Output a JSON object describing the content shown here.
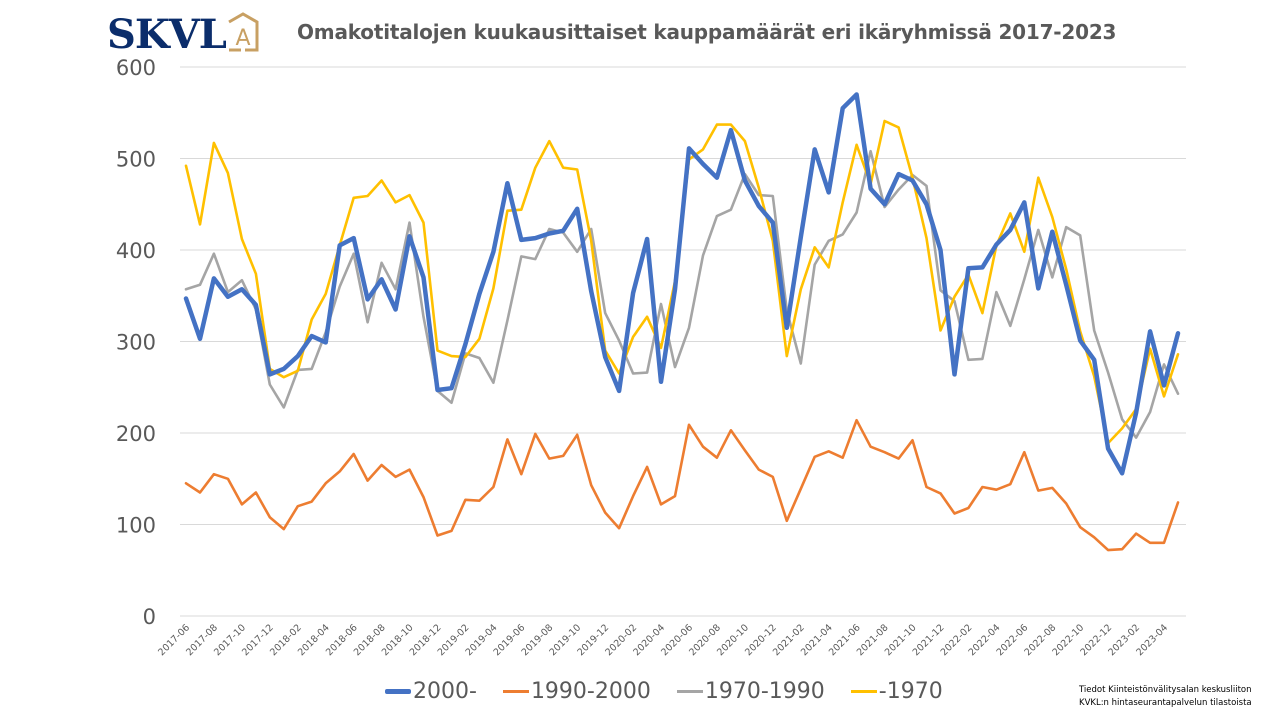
{
  "logo": {
    "text": "SKVL",
    "badge": "A",
    "text_color": "#0b2d6b",
    "badge_color": "#c8a063"
  },
  "header": {
    "title": "Omakotitalojen kuukausittaiset kauppamäärät eri ikäryhmissä 2017-2023"
  },
  "source": {
    "line1": "Tiedot Kiinteistönvälitysalan keskusliiton",
    "line2": "KVKL:n hintaseurantapalvelun tilastoista"
  },
  "chart_data": {
    "type": "line",
    "title": "Omakotitalojen kuukausittaiset kauppamäärät eri ikäryhmissä 2017-2023",
    "xlabel": "",
    "ylabel": "",
    "ylim": [
      0,
      600
    ],
    "yticks": [
      "0",
      "100",
      "200",
      "300",
      "400",
      "500",
      "600"
    ],
    "grid": true,
    "legend": "bottom",
    "x": [
      "2017-06",
      "2017-07",
      "2017-08",
      "2017-09",
      "2017-10",
      "2017-11",
      "2017-12",
      "2018-01",
      "2018-02",
      "2018-03",
      "2018-04",
      "2018-05",
      "2018-06",
      "2018-07",
      "2018-08",
      "2018-09",
      "2018-10",
      "2018-11",
      "2018-12",
      "2019-01",
      "2019-02",
      "2019-03",
      "2019-04",
      "2019-05",
      "2019-06",
      "2019-07",
      "2019-08",
      "2019-09",
      "2019-10",
      "2019-11",
      "2019-12",
      "2020-01",
      "2020-02",
      "2020-03",
      "2020-04",
      "2020-05",
      "2020-06",
      "2020-07",
      "2020-08",
      "2020-09",
      "2020-10",
      "2020-11",
      "2020-12",
      "2021-01",
      "2021-02",
      "2021-03",
      "2021-04",
      "2021-05",
      "2021-06",
      "2021-07",
      "2021-08",
      "2021-09",
      "2021-10",
      "2021-11",
      "2021-12",
      "2022-01",
      "2022-02",
      "2022-03",
      "2022-04",
      "2022-05",
      "2022-06",
      "2022-07",
      "2022-08",
      "2022-09",
      "2022-10",
      "2022-11",
      "2022-12",
      "2023-01",
      "2023-02",
      "2023-03",
      "2023-04",
      "2023-05"
    ],
    "xtick_labels": [
      "2017-06",
      "2017-08",
      "2017-10",
      "2017-12",
      "2018-02",
      "2018-04",
      "2018-06",
      "2018-08",
      "2018-10",
      "2018-12",
      "2019-02",
      "2019-04",
      "2019-06",
      "2019-08",
      "2019-10",
      "2019-12",
      "2020-02",
      "2020-04",
      "2020-06",
      "2020-08",
      "2020-10",
      "2020-12",
      "2021-02",
      "2021-04",
      "2021-06",
      "2021-08",
      "2021-10",
      "2021-12",
      "2022-02",
      "2022-04",
      "2022-06",
      "2022-08",
      "2022-10",
      "2022-12",
      "2023-02",
      "2023-04"
    ],
    "series": [
      {
        "name": "2000-",
        "color": "#4472c4",
        "values": [
          347,
          303,
          369,
          349,
          357,
          340,
          264,
          270,
          284,
          306,
          299,
          405,
          413,
          346,
          368,
          335,
          415,
          370,
          247,
          249,
          297,
          352,
          398,
          473,
          411,
          413,
          418,
          421,
          445,
          355,
          283,
          246,
          353,
          412,
          256,
          357,
          511,
          494,
          479,
          531,
          476,
          448,
          430,
          315,
          414,
          510,
          463,
          555,
          570,
          467,
          450,
          483,
          476,
          450,
          400,
          264,
          380,
          381,
          406,
          422,
          452,
          358,
          420,
          362,
          301,
          280,
          183,
          156,
          222,
          311,
          252,
          309
        ]
      },
      {
        "name": "1990-2000",
        "color": "#ed7d31",
        "values": [
          145,
          135,
          155,
          150,
          122,
          135,
          108,
          95,
          120,
          125,
          145,
          158,
          177,
          148,
          165,
          152,
          160,
          130,
          88,
          93,
          127,
          126,
          141,
          193,
          155,
          199,
          172,
          175,
          198,
          143,
          113,
          96,
          131,
          163,
          122,
          131,
          209,
          185,
          173,
          203,
          181,
          160,
          152,
          104,
          139,
          174,
          180,
          173,
          214,
          185,
          179,
          172,
          192,
          141,
          134,
          112,
          118,
          141,
          138,
          144,
          179,
          137,
          140,
          123,
          97,
          86,
          72,
          73,
          90,
          80,
          80,
          124
        ]
      },
      {
        "name": "1970-1990",
        "color": "#a5a5a5",
        "values": [
          357,
          362,
          396,
          354,
          367,
          335,
          253,
          228,
          269,
          270,
          310,
          360,
          396,
          321,
          386,
          357,
          430,
          327,
          246,
          233,
          287,
          282,
          255,
          323,
          393,
          390,
          423,
          419,
          398,
          423,
          331,
          301,
          265,
          266,
          341,
          272,
          315,
          394,
          437,
          444,
          483,
          460,
          459,
          334,
          276,
          384,
          410,
          417,
          441,
          508,
          447,
          466,
          482,
          470,
          356,
          344,
          280,
          281,
          354,
          317,
          368,
          422,
          370,
          425,
          416,
          312,
          266,
          215,
          195,
          223,
          275,
          243
        ]
      },
      {
        "name": "-1970",
        "color": "#ffc000",
        "values": [
          492,
          428,
          517,
          484,
          412,
          374,
          270,
          261,
          268,
          324,
          352,
          405,
          457,
          459,
          476,
          452,
          460,
          430,
          290,
          284,
          283,
          303,
          358,
          443,
          444,
          490,
          519,
          490,
          488,
          410,
          290,
          265,
          305,
          327,
          293,
          366,
          499,
          510,
          537,
          537,
          519,
          468,
          410,
          284,
          357,
          403,
          381,
          452,
          515,
          472,
          541,
          534,
          479,
          413,
          312,
          349,
          373,
          331,
          405,
          440,
          398,
          479,
          436,
          379,
          311,
          262,
          189,
          205,
          226,
          292,
          240,
          286
        ]
      }
    ]
  }
}
